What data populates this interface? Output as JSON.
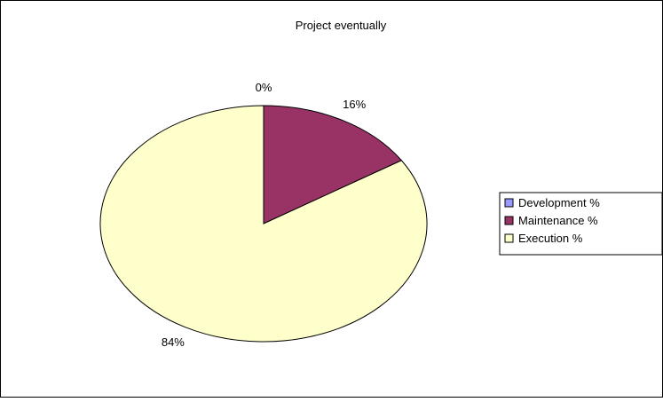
{
  "chart_data": {
    "type": "pie",
    "title": "Project eventually",
    "slices": [
      {
        "label": "Development %",
        "value": 0,
        "data_label": "0%",
        "color": "#9999ff"
      },
      {
        "label": "Maintenance %",
        "value": 16,
        "data_label": "16%",
        "color": "#993366"
      },
      {
        "label": "Execution %",
        "value": 84,
        "data_label": "84%",
        "color": "#ffffcc"
      }
    ],
    "start_angle": "12 o'clock",
    "direction": "clockwise",
    "legend_position": "right",
    "slice_border_color": "#000000",
    "frame_border_color": "#000000"
  }
}
